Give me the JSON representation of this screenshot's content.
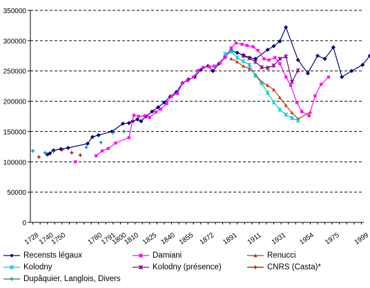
{
  "chart_data": {
    "type": "line",
    "title": "",
    "xlabel": "",
    "ylabel": "",
    "ylim": [
      0,
      350000
    ],
    "yticks": [
      "0",
      "50000",
      "100000",
      "150000",
      "200000",
      "250000",
      "300000",
      "350000"
    ],
    "xticks": [
      "1728",
      "1740",
      "1750",
      "1780",
      "1791",
      "1800",
      "1810",
      "1825",
      "1840",
      "1855",
      "1872",
      "1891",
      "1911",
      "1931",
      "1954",
      "1975",
      "1999"
    ],
    "xlim": [
      1726,
      2000
    ],
    "grid": true,
    "legend_position": "bottom",
    "series": [
      {
        "name": "Recensts légaux",
        "color": "#000080",
        "marker": "diamond",
        "points": [
          [
            1740,
            112000
          ],
          [
            1742,
            114000
          ],
          [
            1745,
            119000
          ],
          [
            1751,
            121000
          ],
          [
            1757,
            123000
          ],
          [
            1773,
            130000
          ],
          [
            1777,
            141000
          ],
          [
            1782,
            144000
          ],
          [
            1793,
            150000
          ],
          [
            1802,
            163000
          ],
          [
            1807,
            164000
          ],
          [
            1810,
            167000
          ],
          [
            1814,
            170000
          ],
          [
            1817,
            167000
          ],
          [
            1821,
            175000
          ],
          [
            1826,
            183000
          ],
          [
            1831,
            190000
          ],
          [
            1836,
            198000
          ],
          [
            1841,
            208000
          ],
          [
            1846,
            215000
          ],
          [
            1851,
            230000
          ],
          [
            1856,
            236000
          ],
          [
            1861,
            240000
          ],
          [
            1866,
            252000
          ],
          [
            1872,
            258000
          ],
          [
            1876,
            250000
          ],
          [
            1881,
            262000
          ],
          [
            1886,
            273000
          ],
          [
            1891,
            284000
          ],
          [
            1896,
            280000
          ],
          [
            1901,
            276000
          ],
          [
            1906,
            272000
          ],
          [
            1911,
            270000
          ],
          [
            1921,
            285000
          ],
          [
            1926,
            291000
          ],
          [
            1931,
            299000
          ],
          [
            1936,
            322000
          ],
          [
            1946,
            268000
          ],
          [
            1954,
            246000
          ],
          [
            1962,
            275000
          ],
          [
            1968,
            270000
          ],
          [
            1975,
            289000
          ],
          [
            1982,
            240000
          ],
          [
            1990,
            250000
          ],
          [
            1999,
            260000
          ],
          [
            2005,
            275000
          ]
        ]
      },
      {
        "name": "Damiani",
        "color": "#ff00ff",
        "marker": "square",
        "points": [
          [
            1763,
            100000
          ],
          [
            1780,
            110000
          ],
          [
            1785,
            118000
          ],
          [
            1790,
            122000
          ],
          [
            1796,
            131000
          ],
          [
            1807,
            140000
          ],
          [
            1811,
            177000
          ],
          [
            1815,
            175000
          ],
          [
            1820,
            176000
          ],
          [
            1824,
            173000
          ],
          [
            1829,
            182000
          ],
          [
            1833,
            187000
          ],
          [
            1838,
            196000
          ],
          [
            1842,
            208000
          ],
          [
            1847,
            213000
          ],
          [
            1851,
            230000
          ],
          [
            1855,
            234000
          ],
          [
            1860,
            240000
          ],
          [
            1864,
            251000
          ],
          [
            1868,
            256000
          ],
          [
            1873,
            257000
          ],
          [
            1877,
            258000
          ],
          [
            1882,
            263000
          ],
          [
            1886,
            272000
          ],
          [
            1891,
            288000
          ],
          [
            1895,
            296000
          ],
          [
            1900,
            294000
          ],
          [
            1904,
            292000
          ],
          [
            1909,
            290000
          ],
          [
            1913,
            284000
          ],
          [
            1918,
            270000
          ],
          [
            1922,
            268000
          ],
          [
            1927,
            272000
          ],
          [
            1931,
            262000
          ],
          [
            1936,
            240000
          ],
          [
            1940,
            226000
          ],
          [
            1945,
            198000
          ],
          [
            1949,
            183000
          ],
          [
            1955,
            176000
          ],
          [
            1960,
            209000
          ],
          [
            1965,
            228000
          ],
          [
            1971,
            240000
          ]
        ]
      },
      {
        "name": "Renucci",
        "color": "#cc3300",
        "marker": "triangle",
        "points": [
          [
            1891,
            270000
          ],
          [
            1896,
            265000
          ],
          [
            1901,
            258000
          ],
          [
            1906,
            254000
          ],
          [
            1911,
            244000
          ],
          [
            1916,
            232000
          ],
          [
            1921,
            226000
          ],
          [
            1926,
            219000
          ],
          [
            1931,
            206000
          ],
          [
            1936,
            193000
          ],
          [
            1941,
            181000
          ],
          [
            1946,
            171000
          ],
          [
            1956,
            182000
          ]
        ]
      },
      {
        "name": "Kolodny",
        "color": "#00cccc",
        "marker": "star",
        "points": [
          [
            1886,
            278000
          ],
          [
            1891,
            282000
          ],
          [
            1896,
            272000
          ],
          [
            1901,
            266000
          ],
          [
            1906,
            260000
          ],
          [
            1911,
            242000
          ],
          [
            1916,
            230000
          ],
          [
            1921,
            214000
          ],
          [
            1926,
            198000
          ],
          [
            1931,
            186000
          ],
          [
            1936,
            178000
          ],
          [
            1941,
            172000
          ],
          [
            1946,
            168000
          ]
        ]
      },
      {
        "name": "Kolodny (présence)",
        "color": "#800080",
        "marker": "star",
        "points": [
          [
            1901,
            275000
          ],
          [
            1906,
            271000
          ],
          [
            1911,
            265000
          ],
          [
            1916,
            256000
          ],
          [
            1921,
            255000
          ],
          [
            1926,
            259000
          ],
          [
            1931,
            270000
          ],
          [
            1936,
            274000
          ],
          [
            1941,
            232000
          ],
          [
            1946,
            251000
          ]
        ]
      },
      {
        "name": "CNRS (Casta)*",
        "color": "#990000",
        "marker": "plus",
        "points": [
          [
            1733,
            108000
          ],
          [
            1752,
            120000
          ],
          [
            1760,
            115000
          ],
          [
            1767,
            111000
          ]
        ]
      },
      {
        "name": "Dupâquier, Langlois, Divers",
        "color": "#008080",
        "marker": "plus",
        "points": [
          [
            1728,
            118000
          ],
          [
            1738,
            115000
          ],
          [
            1745,
            117000
          ],
          [
            1772,
            124000
          ],
          [
            1784,
            132000
          ],
          [
            1794,
            148000
          ],
          [
            1803,
            150000
          ]
        ]
      }
    ]
  }
}
